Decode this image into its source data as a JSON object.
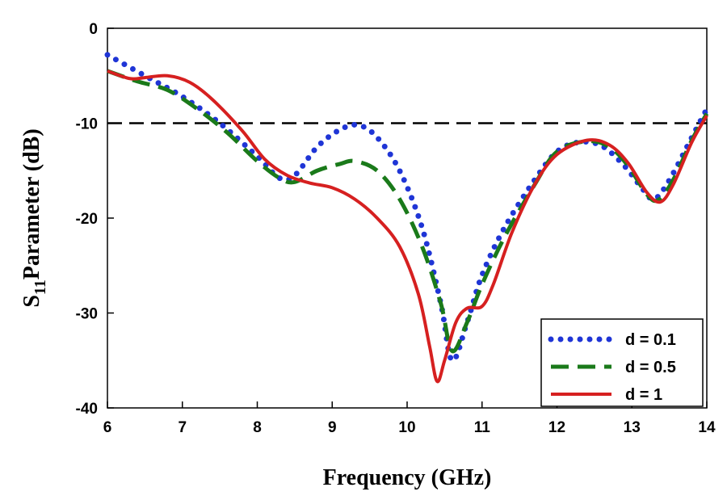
{
  "chart_data": {
    "type": "line",
    "xlabel": "Frequency (GHz)",
    "ylabel_main": "S",
    "ylabel_sub": "11",
    "ylabel_rest": "Parameter (dB)",
    "xlim": [
      6,
      14
    ],
    "ylim": [
      -40,
      0
    ],
    "xticks": [
      "6",
      "7",
      "8",
      "9",
      "10",
      "11",
      "12",
      "13",
      "14"
    ],
    "yticks": [
      "0",
      "-10",
      "-20",
      "-30",
      "-40"
    ],
    "grid": false,
    "legend_position": "bottom-right",
    "reference_line": {
      "y": -10,
      "style": "dashed",
      "color": "#000000"
    },
    "series": [
      {
        "name": "d = 0.1",
        "style": "dotted",
        "color": "#1f35d6",
        "points": [
          [
            6,
            -2.8
          ],
          [
            6.5,
            -5
          ],
          [
            7,
            -7.2
          ],
          [
            7.5,
            -10
          ],
          [
            8,
            -13.5
          ],
          [
            8.3,
            -15.8
          ],
          [
            8.5,
            -15.5
          ],
          [
            8.8,
            -12.5
          ],
          [
            9.1,
            -10.7
          ],
          [
            9.35,
            -10.2
          ],
          [
            9.6,
            -11.5
          ],
          [
            9.9,
            -15
          ],
          [
            10.2,
            -21
          ],
          [
            10.45,
            -29
          ],
          [
            10.6,
            -35
          ],
          [
            10.8,
            -31
          ],
          [
            11,
            -26
          ],
          [
            11.3,
            -21
          ],
          [
            11.7,
            -16
          ],
          [
            12,
            -13
          ],
          [
            12.3,
            -12
          ],
          [
            12.6,
            -12.4
          ],
          [
            12.9,
            -14.5
          ],
          [
            13.15,
            -17
          ],
          [
            13.3,
            -18
          ],
          [
            13.5,
            -16
          ],
          [
            13.8,
            -11.5
          ],
          [
            14,
            -8.5
          ]
        ]
      },
      {
        "name": "d = 0.5",
        "style": "dashed",
        "color": "#1a7a1a",
        "points": [
          [
            6,
            -4.5
          ],
          [
            6.4,
            -5.6
          ],
          [
            6.8,
            -6.5
          ],
          [
            7.2,
            -8.5
          ],
          [
            7.6,
            -11
          ],
          [
            8,
            -14
          ],
          [
            8.3,
            -15.8
          ],
          [
            8.5,
            -16.2
          ],
          [
            8.8,
            -15
          ],
          [
            9.1,
            -14.3
          ],
          [
            9.3,
            -14
          ],
          [
            9.6,
            -15
          ],
          [
            9.9,
            -18
          ],
          [
            10.2,
            -23
          ],
          [
            10.45,
            -29
          ],
          [
            10.6,
            -34
          ],
          [
            10.8,
            -31
          ],
          [
            11,
            -27
          ],
          [
            11.3,
            -22
          ],
          [
            11.7,
            -16.5
          ],
          [
            12,
            -13
          ],
          [
            12.4,
            -11.9
          ],
          [
            12.7,
            -12.5
          ],
          [
            12.95,
            -14.5
          ],
          [
            13.2,
            -17.5
          ],
          [
            13.35,
            -18.1
          ],
          [
            13.55,
            -16
          ],
          [
            13.8,
            -11.8
          ],
          [
            14,
            -9
          ]
        ]
      },
      {
        "name": "d = 1",
        "style": "solid",
        "color": "#d62020",
        "points": [
          [
            6,
            -4.5
          ],
          [
            6.3,
            -5.3
          ],
          [
            6.5,
            -5.2
          ],
          [
            6.8,
            -5
          ],
          [
            7.1,
            -5.7
          ],
          [
            7.4,
            -7.5
          ],
          [
            7.8,
            -10.8
          ],
          [
            8.1,
            -13.8
          ],
          [
            8.4,
            -15.5
          ],
          [
            8.7,
            -16.3
          ],
          [
            9,
            -16.8
          ],
          [
            9.3,
            -18
          ],
          [
            9.6,
            -20
          ],
          [
            9.9,
            -23
          ],
          [
            10.15,
            -28
          ],
          [
            10.3,
            -33.5
          ],
          [
            10.4,
            -37.2
          ],
          [
            10.5,
            -35
          ],
          [
            10.65,
            -31
          ],
          [
            10.8,
            -29.5
          ],
          [
            11,
            -29.3
          ],
          [
            11.15,
            -27
          ],
          [
            11.4,
            -21.5
          ],
          [
            11.7,
            -16.5
          ],
          [
            12,
            -13.3
          ],
          [
            12.4,
            -11.8
          ],
          [
            12.7,
            -12.3
          ],
          [
            12.95,
            -14.2
          ],
          [
            13.2,
            -17.3
          ],
          [
            13.38,
            -18.3
          ],
          [
            13.55,
            -16.5
          ],
          [
            13.8,
            -12
          ],
          [
            14,
            -9.2
          ]
        ]
      }
    ]
  }
}
